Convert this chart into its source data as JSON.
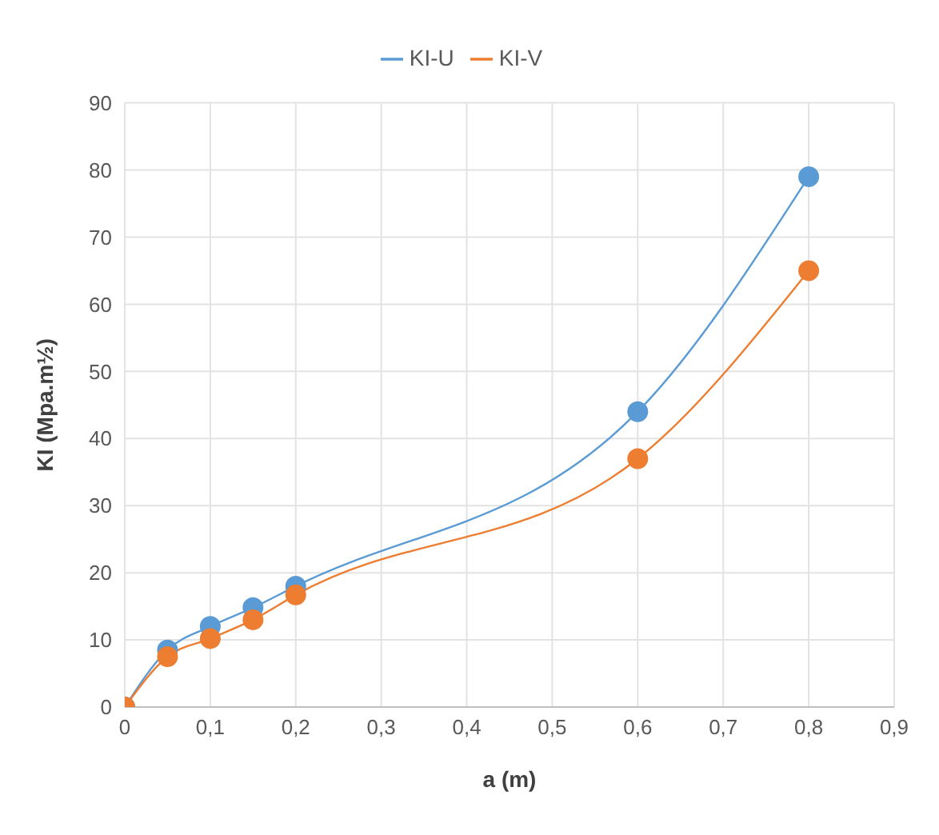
{
  "chart_data": {
    "type": "line",
    "xlabel": "a (m)",
    "ylabel": "KI (Mpa.m½)",
    "x": [
      0,
      0.05,
      0.1,
      0.15,
      0.2,
      0.6,
      0.8
    ],
    "series": [
      {
        "name": "KI-U",
        "color": "#5b9bd5",
        "values": [
          0,
          8.5,
          12,
          14.8,
          18,
          44,
          79
        ]
      },
      {
        "name": "KI-V",
        "color": "#ed7d31",
        "values": [
          0,
          7.5,
          10.2,
          13,
          16.7,
          37,
          65
        ]
      }
    ],
    "xlim": [
      0,
      0.9
    ],
    "xticks": [
      0,
      {
        "value": 0.1,
        "label": "0,1"
      },
      {
        "value": 0.2,
        "label": "0,2"
      },
      {
        "value": 0.3,
        "label": "0,3"
      },
      {
        "value": 0.4,
        "label": "0,4"
      },
      {
        "value": 0.5,
        "label": "0,5"
      },
      {
        "value": 0.6,
        "label": "0,6"
      },
      {
        "value": 0.7,
        "label": "0,7"
      },
      {
        "value": 0.8,
        "label": "0,8"
      },
      {
        "value": 0.9,
        "label": "0,9"
      }
    ],
    "ylim": [
      0,
      90
    ],
    "yticks": [
      0,
      10,
      20,
      30,
      40,
      50,
      60,
      70,
      80,
      90
    ],
    "grid": true,
    "legend": "top",
    "marker": "circle",
    "line_style": "solid"
  }
}
